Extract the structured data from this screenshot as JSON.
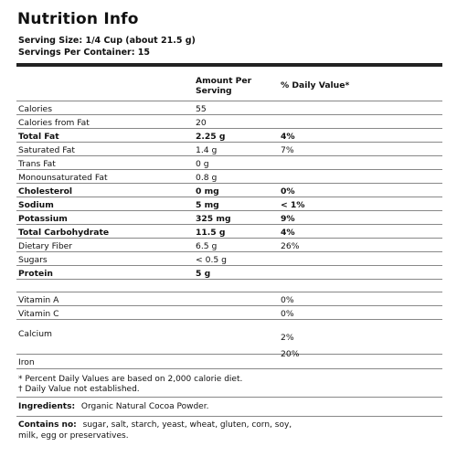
{
  "header": {
    "title": "Nutrition Info",
    "serving_size": "Serving Size: 1/4 Cup (about 21.5 g)",
    "servings_per_container": "Servings Per Container: 15"
  },
  "columns": {
    "amount_line1": "Amount Per",
    "amount_line2": "Serving",
    "daily_value": "% Daily Value*"
  },
  "rows": [
    {
      "name": "Calories",
      "amount": "55",
      "dv": "",
      "bold": false
    },
    {
      "name": "Calories from Fat",
      "amount": "20",
      "dv": "",
      "bold": false
    },
    {
      "name": "Total Fat",
      "amount": "2.25 g",
      "dv": "4%",
      "bold": true
    },
    {
      "name": "Saturated Fat",
      "amount": "1.4 g",
      "dv": "7%",
      "bold": false
    },
    {
      "name": "Trans Fat",
      "amount": "0 g",
      "dv": "",
      "bold": false
    },
    {
      "name": "Monounsaturated Fat",
      "amount": "0.8 g",
      "dv": "",
      "bold": false
    },
    {
      "name": "Cholesterol",
      "amount": "0 mg",
      "dv": "0%",
      "bold": true
    },
    {
      "name": "Sodium",
      "amount": "5 mg",
      "dv": "< 1%",
      "bold": true
    },
    {
      "name": "Potassium",
      "amount": "325 mg",
      "dv": "9%",
      "bold": true
    },
    {
      "name": "Total Carbohydrate",
      "amount": "11.5 g",
      "dv": "4%",
      "bold": true
    },
    {
      "name": "Dietary Fiber",
      "amount": "6.5 g",
      "dv": "26%",
      "bold": false
    },
    {
      "name": "Sugars",
      "amount": "< 0.5 g",
      "dv": "",
      "bold": false
    },
    {
      "name": "Protein",
      "amount": "5 g",
      "dv": "",
      "bold": true
    }
  ],
  "vitamins": [
    {
      "name": "Vitamin A",
      "dv": "0%"
    },
    {
      "name": "Vitamin C",
      "dv": "0%"
    },
    {
      "name": "Calcium",
      "dv": "2%"
    },
    {
      "name": "Iron",
      "dv": "20%"
    }
  ],
  "footnotes": {
    "line1": "* Percent Daily Values are based on 2,000 calorie diet.",
    "line2": "† Daily Value not established."
  },
  "ingredients": {
    "label": "Ingredients:",
    "text": "Organic Natural Cocoa Powder."
  },
  "contains_no": {
    "label": "Contains no:",
    "line1": "sugar, salt, starch, yeast, wheat, gluten, corn, soy,",
    "line2": "milk, egg or preservatives."
  }
}
